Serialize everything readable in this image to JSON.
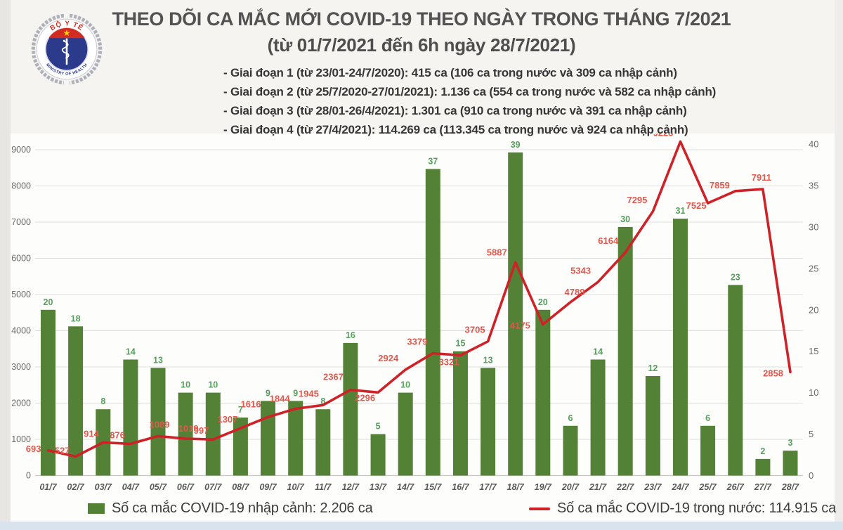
{
  "header": {
    "logo": {
      "top_text": "BỘ Y TẾ",
      "bottom_text": "MINISTRY OF HEALTH"
    },
    "title": "THEO DÕI CA MẮC MỚI COVID-19 THEO NGÀY TRONG THÁNG 7/2021",
    "subtitle": "(từ 01/7/2021 đến 6h ngày 28/7/2021)",
    "bullets": [
      "- Giai đoạn 1 (từ 23/01-24/7/2020): 415 ca (106 ca trong nước và 309 ca nhập cảnh)",
      "- Giai đoạn 2 (từ 25/7/2020-27/01/2021): 1.136 ca (554 ca trong nước và 582 ca nhập cảnh)",
      "- Giai đoạn 3 (từ 28/01-26/4/2021): 1.301 ca (910 ca trong nước và 391 ca nhập cảnh)",
      "- Giai đoạn 4 (từ 27/4/2021): 114.269 ca (113.345 ca trong nước và 924 ca nhập cảnh)"
    ]
  },
  "chart_data": {
    "type": "bar",
    "subtype": "dual-axis combo: bars on right axis, line on left axis",
    "categories": [
      "01/7",
      "02/7",
      "03/7",
      "04/7",
      "05/7",
      "06/7",
      "07/7",
      "08/7",
      "09/7",
      "10/7",
      "11/7",
      "12/7",
      "13/7",
      "14/7",
      "15/7",
      "16/7",
      "17/7",
      "18/7",
      "19/7",
      "20/7",
      "21/7",
      "22/7",
      "23/7",
      "24/7",
      "25/7",
      "26/7",
      "27/7",
      "28/7"
    ],
    "series": [
      {
        "name": "Số ca mắc COVID-19 nhập cảnh",
        "type": "bar",
        "axis": "right",
        "color": "#538135",
        "label_color": "#57a05f",
        "values": [
          20,
          18,
          8,
          14,
          13,
          10,
          10,
          7,
          9,
          9,
          8,
          16,
          5,
          10,
          37,
          15,
          13,
          39,
          20,
          6,
          14,
          30,
          12,
          31,
          6,
          23,
          2,
          3
        ]
      },
      {
        "name": "Số ca mắc COVID-19 trong nước",
        "type": "line",
        "axis": "left",
        "color": "#cf2128",
        "label_color": "#e2584d",
        "values": [
          693,
          527,
          914,
          876,
          1089,
          1019,
          997,
          1307,
          1616,
          1844,
          1945,
          2367,
          2296,
          2924,
          3379,
          3321,
          3705,
          5887,
          4175,
          4789,
          5343,
          6164,
          7295,
          9225,
          7525,
          7859,
          7911,
          2858
        ]
      }
    ],
    "left_axis": {
      "min": 0,
      "max": 9000,
      "step": 1000
    },
    "right_axis": {
      "min": 0,
      "max": 40,
      "step": 5
    },
    "grid": true,
    "legend_position": "bottom"
  },
  "legend": {
    "imported_label": "Số ca mắc COVID-19 nhập cảnh: 2.206 ca",
    "domestic_label": "Số ca mắc COVID-19 trong nước: 114.915 ca"
  },
  "colors": {
    "bar": "#538135",
    "bar_label": "#57a05f",
    "line": "#cf2128",
    "line_label": "#e2584d",
    "axis_text": "#6b6b6b",
    "x_label": "#595959",
    "grid": "#dedede",
    "axis_line": "#c6c6c3",
    "bottom_strip": "#d9e3ee",
    "logo_red": "#d42b20",
    "logo_navy": "#2c3a8c",
    "logo_star": "#ffd200"
  }
}
